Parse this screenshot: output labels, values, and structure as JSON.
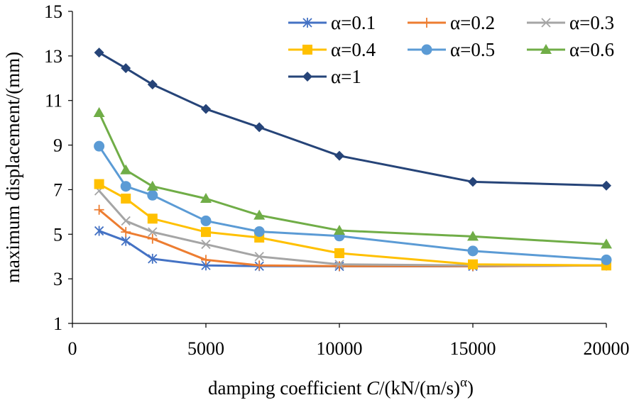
{
  "chart_data": {
    "type": "line",
    "title": "",
    "xlabel": "damping coefficient C/(kN/(m/s)α)",
    "xlabel_parts": {
      "prefix": "damping coefficient ",
      "italic": "C",
      "middle": "/(kN/(m/s)",
      "superscript": "α",
      "suffix": ")"
    },
    "ylabel": "maximum displacement/(mm)",
    "xlim": [
      0,
      20000
    ],
    "ylim": [
      1,
      15
    ],
    "xticks": [
      0,
      5000,
      10000,
      15000,
      20000
    ],
    "xtick_labels": [
      "0",
      "5000",
      "10000",
      "15000",
      "20000"
    ],
    "yticks": [
      1,
      3,
      5,
      7,
      9,
      11,
      13,
      15
    ],
    "ytick_labels": [
      "1",
      "3",
      "5",
      "7",
      "9",
      "11",
      "13",
      "15"
    ],
    "grid": false,
    "legend_position": "top-right",
    "x": [
      1000,
      2000,
      3000,
      5000,
      7000,
      10000,
      15000,
      20000
    ],
    "series": [
      {
        "name": "α=0.1",
        "color": "#4472C4",
        "marker": "star",
        "values": [
          5.15,
          4.7,
          3.9,
          3.6,
          3.57,
          3.56,
          3.56,
          3.6
        ]
      },
      {
        "name": "α=0.2",
        "color": "#ED7D31",
        "marker": "plus",
        "values": [
          6.1,
          5.1,
          4.8,
          3.85,
          3.6,
          3.57,
          3.57,
          3.6
        ]
      },
      {
        "name": "α=0.3",
        "color": "#A5A5A5",
        "marker": "x",
        "values": [
          6.95,
          5.6,
          5.1,
          4.55,
          4.0,
          3.65,
          3.6,
          3.6
        ]
      },
      {
        "name": "α=0.4",
        "color": "#FFC000",
        "marker": "square",
        "values": [
          7.25,
          6.6,
          5.7,
          5.1,
          4.85,
          4.15,
          3.65,
          3.6
        ]
      },
      {
        "name": "α=0.5",
        "color": "#5B9BD5",
        "marker": "circle",
        "values": [
          8.95,
          7.15,
          6.75,
          5.6,
          5.12,
          4.92,
          4.25,
          3.85
        ]
      },
      {
        "name": "α=0.6",
        "color": "#70AD47",
        "marker": "triangle",
        "values": [
          10.45,
          7.88,
          7.15,
          6.6,
          5.85,
          5.17,
          4.9,
          4.55
        ]
      },
      {
        "name": "α=1",
        "color": "#264478",
        "marker": "diamond",
        "values": [
          13.15,
          12.45,
          11.72,
          10.62,
          9.8,
          8.52,
          7.35,
          7.18
        ]
      }
    ]
  }
}
